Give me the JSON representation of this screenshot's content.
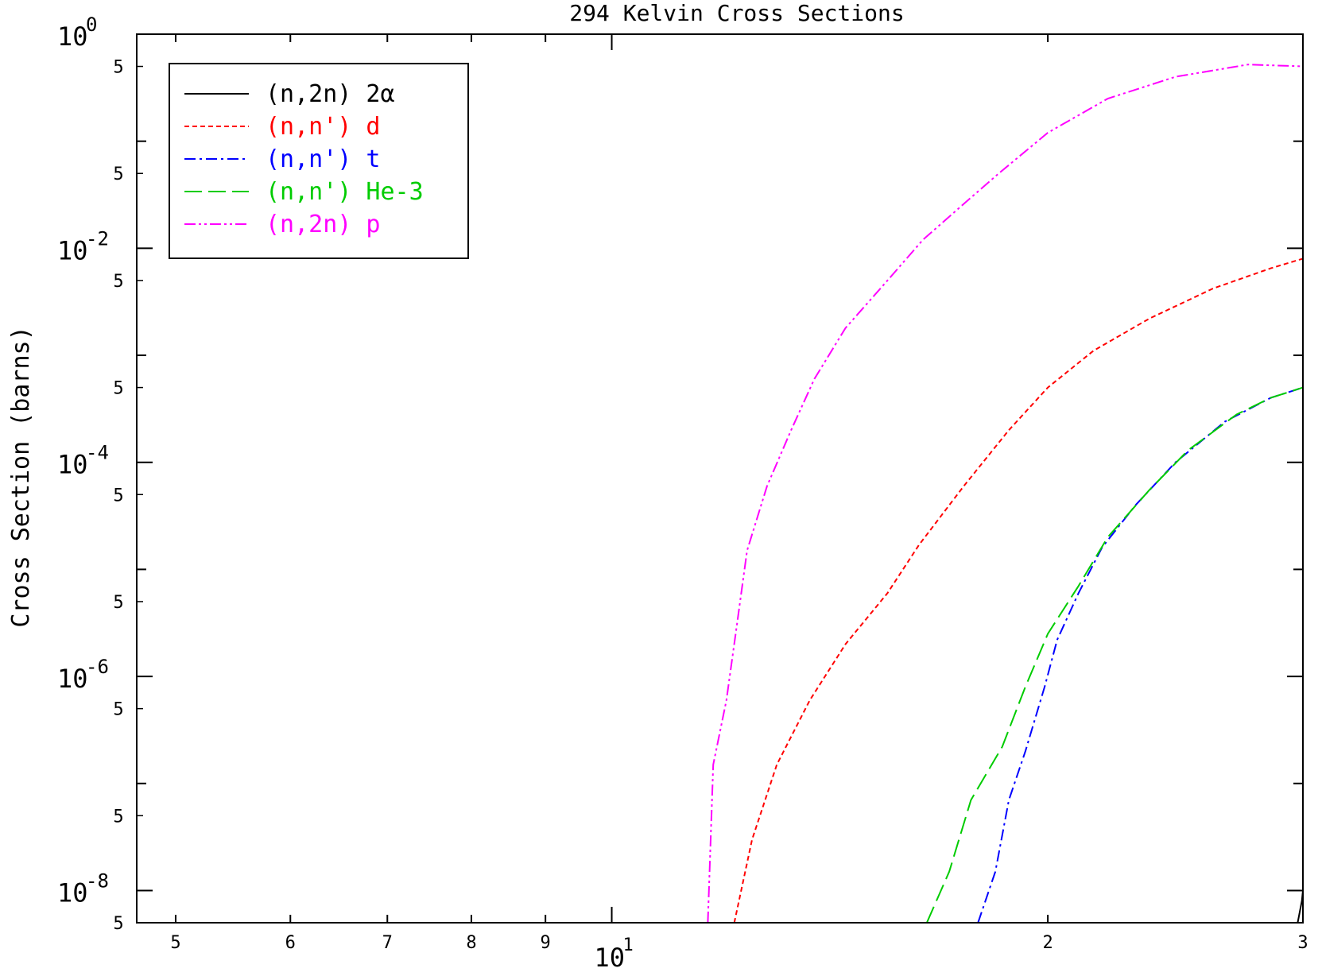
{
  "chart_data": {
    "type": "line",
    "title": "294 Kelvin Cross Sections",
    "xlabel": "",
    "ylabel": "Cross Section (barns)",
    "x_scale": "log",
    "y_scale": "log",
    "xlim": [
      4.7,
      30
    ],
    "ylim": [
      5e-09,
      1
    ],
    "grid": false,
    "legend_position": "top-left",
    "x_minor_ticks": [
      {
        "value": 5,
        "label": "5"
      },
      {
        "value": 6,
        "label": "6"
      },
      {
        "value": 7,
        "label": "7"
      },
      {
        "value": 8,
        "label": "8"
      },
      {
        "value": 9,
        "label": "9"
      },
      {
        "value": 20,
        "label": "2"
      },
      {
        "value": 30,
        "label": "3"
      }
    ],
    "x_major_ticks": [
      {
        "value": 10,
        "base": "10",
        "exp": "1"
      }
    ],
    "y_major_ticks": [
      {
        "value": 1,
        "base": "10",
        "exp": "0"
      },
      {
        "value": 0.01,
        "base": "10",
        "exp": "-2"
      },
      {
        "value": 0.0001,
        "base": "10",
        "exp": "-4"
      },
      {
        "value": 1e-06,
        "base": "10",
        "exp": "-6"
      },
      {
        "value": 1e-08,
        "base": "10",
        "exp": "-8"
      }
    ],
    "y_minor_label": "5",
    "series": [
      {
        "name": "(n,2n) 2α",
        "color": "#000000",
        "dash": "solid",
        "x": [
          29.75,
          29.95,
          30.0
        ],
        "y": [
          5e-09,
          8e-09,
          1e-08
        ]
      },
      {
        "name": "(n,n') d",
        "color": "#ff0000",
        "dash": "dashed",
        "x": [
          12.15,
          12.5,
          13.0,
          13.7,
          14.5,
          15.5,
          16.3,
          17.5,
          18.8,
          20.0,
          21.5,
          23.5,
          26.0,
          28.5,
          30.0
        ],
        "y": [
          5e-09,
          3e-08,
          1.5e-07,
          6e-07,
          2e-06,
          6e-06,
          1.7e-05,
          6e-05,
          0.0002,
          0.0005,
          0.0011,
          0.0022,
          0.0042,
          0.0065,
          0.008
        ]
      },
      {
        "name": "(n,n') t",
        "color": "#0000ff",
        "dash": "dashdot",
        "x": [
          17.9,
          18.4,
          18.8,
          19.3,
          19.9,
          20.3,
          21.0,
          21.8,
          23.0,
          24.5,
          26.5,
          28.5,
          30.0
        ],
        "y": [
          5e-09,
          1.5e-08,
          7e-08,
          2e-07,
          8e-07,
          2.2e-06,
          6e-06,
          1.6e-05,
          4e-05,
          0.0001,
          0.00024,
          0.0004,
          0.0005
        ]
      },
      {
        "name": "(n,n') He-3",
        "color": "#00cc00",
        "dash": "longdash",
        "x": [
          16.5,
          17.1,
          17.7,
          18.6,
          19.3,
          20.0,
          21.0,
          22.0,
          23.5,
          25.0,
          27.0,
          28.5,
          30.0
        ],
        "y": [
          5e-09,
          1.5e-08,
          7e-08,
          2.2e-07,
          8e-07,
          2.5e-06,
          7e-06,
          2e-05,
          5.5e-05,
          0.00013,
          0.00028,
          0.0004,
          0.0005
        ]
      },
      {
        "name": "(n,2n) p",
        "color": "#ff00ff",
        "dash": "dashdotdot",
        "x": [
          11.65,
          11.75,
          12.0,
          12.2,
          12.4,
          12.8,
          13.3,
          13.8,
          14.5,
          15.5,
          16.4,
          17.5,
          18.5,
          20.0,
          22.0,
          24.5,
          27.5,
          30.0,
          30.0
        ],
        "y": [
          5e-09,
          1.5e-07,
          6e-07,
          3e-06,
          1.5e-05,
          6e-05,
          0.0002,
          0.0006,
          0.0018,
          0.005,
          0.012,
          0.026,
          0.05,
          0.12,
          0.25,
          0.4,
          0.52,
          0.5,
          5e-09
        ]
      }
    ]
  }
}
